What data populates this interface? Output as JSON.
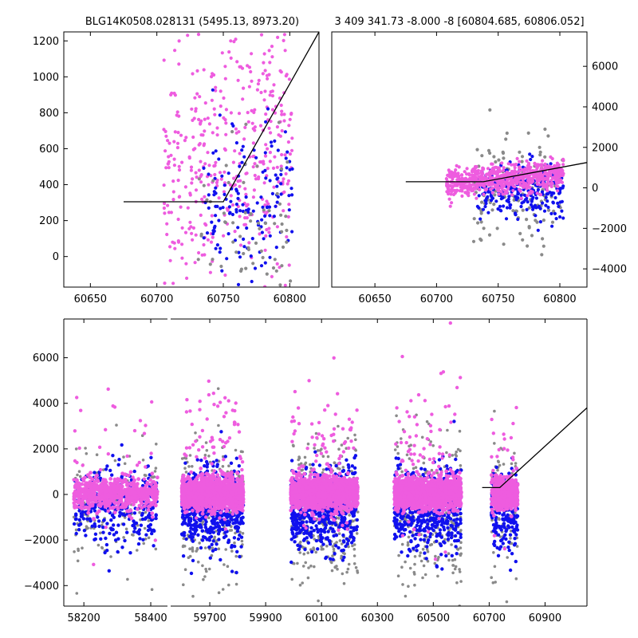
{
  "figure": {
    "left_title": "BLG14K0508.028131 (5495.13, 8973.20)",
    "right_title": "3 409 341.73 -8.000 -8 [60804.685, 60806.052]"
  },
  "colors": {
    "magenta": "#ee5cdf",
    "blue": "#1010ee",
    "gray": "#8a8a8a",
    "axis": "#000000",
    "model_line": "#000000"
  },
  "chart_data": [
    {
      "id": "top-left",
      "type": "scatter",
      "title": "BLG14K0508.028131 (5495.13, 8973.20)",
      "xlim": [
        60630,
        60822
      ],
      "ylim": [
        -170,
        1250
      ],
      "xticks": [
        60650,
        60700,
        60750,
        60800
      ],
      "xtick_labels": [
        "60650",
        "60700",
        "60750",
        "60800"
      ],
      "yticks": [
        0,
        200,
        400,
        600,
        800,
        1000,
        1200
      ],
      "ytick_labels": [
        "0",
        "200",
        "400",
        "600",
        "800",
        "1000",
        "1200"
      ],
      "y_axis_side": "left",
      "series_scatter": [
        {
          "name": "magenta",
          "color": "#ee5cdf",
          "x_range": [
            60705,
            60802
          ],
          "y_center": 550,
          "y_spread": 340,
          "count": 420,
          "trend": 6.0
        },
        {
          "name": "blue",
          "color": "#1010ee",
          "x_range": [
            60735,
            60802
          ],
          "y_center": 280,
          "y_spread": 230,
          "count": 150,
          "trend": 2.5
        },
        {
          "name": "gray",
          "color": "#8a8a8a",
          "x_range": [
            60730,
            60802
          ],
          "y_center": 160,
          "y_spread": 230,
          "count": 70,
          "trend": 1.5
        }
      ],
      "model_line": {
        "x": [
          60675,
          60750,
          60822
        ],
        "y": [
          305,
          305,
          1250
        ]
      }
    },
    {
      "id": "top-right",
      "type": "scatter",
      "title": "3 409 341.73 -8.000 -8 [60804.685, 60806.052]",
      "xlim": [
        60615,
        60822
      ],
      "ylim": [
        -4900,
        7700
      ],
      "xticks": [
        60650,
        60700,
        60750,
        60800
      ],
      "xtick_labels": [
        "60650",
        "60700",
        "60750",
        "60800"
      ],
      "yticks": [
        -4000,
        -2000,
        0,
        2000,
        4000,
        6000
      ],
      "ytick_labels": [
        "−4000",
        "−2000",
        "0",
        "2000",
        "4000",
        "6000"
      ],
      "y_axis_side": "right",
      "series_scatter": [
        {
          "name": "gray",
          "color": "#8a8a8a",
          "x_range": [
            60730,
            60803
          ],
          "y_center": -200,
          "y_spread": 1300,
          "count": 150,
          "trend": 3.0
        },
        {
          "name": "blue",
          "color": "#1010ee",
          "x_range": [
            60733,
            60803
          ],
          "y_center": -150,
          "y_spread": 700,
          "count": 260,
          "trend": 4.0
        },
        {
          "name": "magenta",
          "color": "#ee5cdf",
          "x_range": [
            60708,
            60803
          ],
          "y_center": 450,
          "y_spread": 350,
          "count": 650,
          "trend": 7.0
        }
      ],
      "model_line": {
        "x": [
          60675,
          60738,
          60822
        ],
        "y": [
          300,
          300,
          1250
        ]
      }
    },
    {
      "id": "bottom",
      "type": "scatter",
      "title": "",
      "ylim": [
        -4900,
        7700
      ],
      "yticks": [
        -4000,
        -2000,
        0,
        2000,
        4000,
        6000
      ],
      "ytick_labels": [
        "−4000",
        "−2000",
        "0",
        "2000",
        "4000",
        "6000"
      ],
      "y_axis_side": "left",
      "segments": [
        {
          "xlim": [
            58140,
            58450
          ],
          "xticks": [
            58200,
            58400
          ],
          "xtick_labels": [
            "58200",
            "58400"
          ]
        },
        {
          "xlim": [
            59560,
            61050
          ],
          "xticks": [
            59700,
            59900,
            60100,
            60300,
            60500,
            60700,
            60900
          ],
          "xtick_labels": [
            "59700",
            "59900",
            "60100",
            "60300",
            "60500",
            "60700",
            "60900"
          ]
        }
      ],
      "seasons": [
        {
          "x_range": [
            58170,
            58420
          ],
          "counts": [
            600,
            320,
            140
          ]
        },
        {
          "x_range": [
            59600,
            59820
          ],
          "counts": [
            1400,
            520,
            260
          ]
        },
        {
          "x_range": [
            59990,
            60230
          ],
          "counts": [
            1400,
            560,
            300
          ]
        },
        {
          "x_range": [
            60360,
            60600
          ],
          "counts": [
            1400,
            560,
            280
          ]
        },
        {
          "x_range": [
            60708,
            60802
          ],
          "counts": [
            450,
            200,
            90
          ]
        }
      ],
      "model_line": {
        "x": [
          60675,
          60738,
          61050
        ],
        "y": [
          300,
          300,
          3800
        ]
      }
    }
  ]
}
